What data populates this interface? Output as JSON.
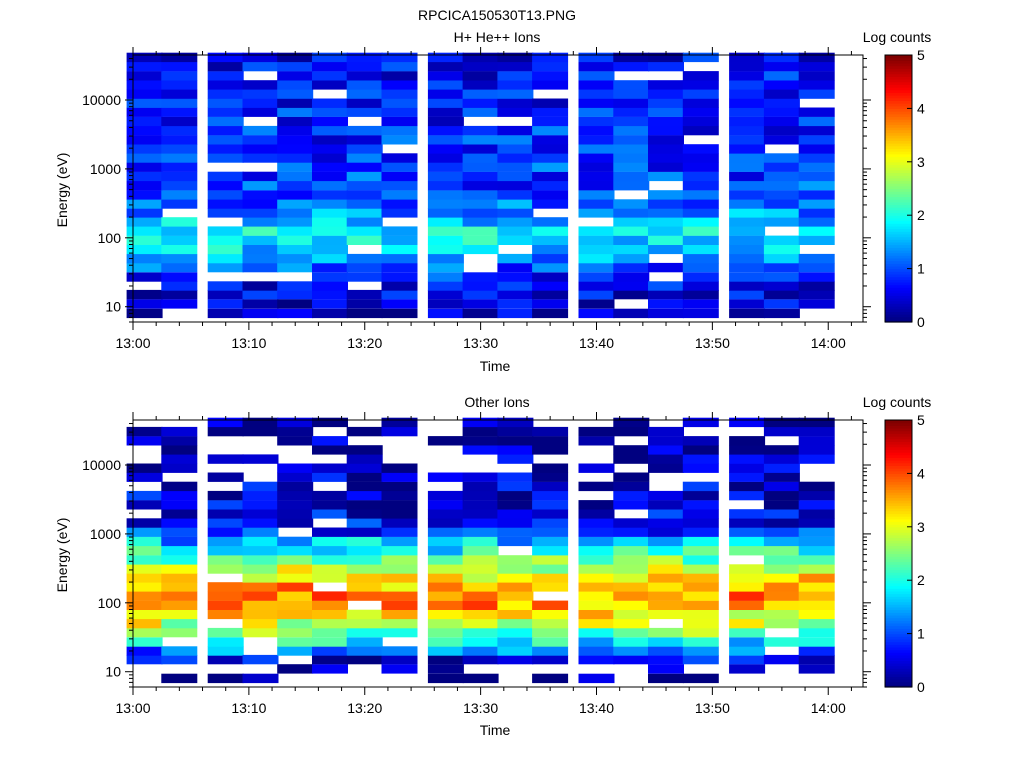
{
  "figure_title": "RPCICA150530T13.PNG",
  "chart_data": [
    {
      "type": "heatmap",
      "title": "H+ He++ Ions",
      "xlabel": "Time",
      "ylabel": "Energy (eV)",
      "x_ticks": [
        "13:00",
        "13:10",
        "13:20",
        "13:30",
        "13:40",
        "13:50",
        "14:00"
      ],
      "xlim": [
        "13:00",
        "14:03"
      ],
      "y_ticks": [
        "10",
        "100",
        "1000",
        "10000"
      ],
      "ylim": [
        6,
        45000
      ],
      "y_scale": "log",
      "colorbar": {
        "label": "Log counts",
        "ticks": [
          "0",
          "1",
          "2",
          "3",
          "4",
          "5"
        ],
        "range": [
          0,
          5
        ]
      },
      "time_columns": [
        "13:01",
        "13:04",
        "13:08",
        "13:11",
        "13:14",
        "13:17",
        "13:20",
        "13:23",
        "13:27",
        "13:30",
        "13:33",
        "13:36",
        "13:40",
        "13:43",
        "13:46",
        "13:49",
        "13:53",
        "13:56",
        "13:59"
      ],
      "energy_bins_eV": [
        8,
        11,
        15,
        20,
        27,
        37,
        50,
        68,
        92,
        125,
        170,
        230,
        310,
        420,
        570,
        780,
        1060,
        1440,
        1950,
        2650,
        3600,
        4900,
        6650,
        9000,
        12200,
        16600,
        22500,
        30600,
        41500
      ],
      "levels_by_energy_low_to_high": [
        0.3,
        0.4,
        0.5,
        0.6,
        0.8,
        1.0,
        1.3,
        1.7,
        1.8,
        1.8,
        1.6,
        1.3,
        1.1,
        1.0,
        0.95,
        0.9,
        0.9,
        0.85,
        0.8,
        0.8,
        0.8,
        0.75,
        0.75,
        0.7,
        0.7,
        0.7,
        0.65,
        0.65,
        0.6
      ]
    },
    {
      "type": "heatmap",
      "title": "Other Ions",
      "xlabel": "Time",
      "ylabel": "Energy (eV)",
      "x_ticks": [
        "13:00",
        "13:10",
        "13:20",
        "13:30",
        "13:40",
        "13:50",
        "14:00"
      ],
      "xlim": [
        "13:00",
        "14:03"
      ],
      "y_ticks": [
        "10",
        "100",
        "1000",
        "10000"
      ],
      "ylim": [
        6,
        45000
      ],
      "y_scale": "log",
      "colorbar": {
        "label": "Log counts",
        "ticks": [
          "0",
          "1",
          "2",
          "3",
          "4",
          "5"
        ],
        "range": [
          0,
          5
        ]
      },
      "time_columns": [
        "13:01",
        "13:04",
        "13:08",
        "13:11",
        "13:14",
        "13:17",
        "13:20",
        "13:23",
        "13:27",
        "13:30",
        "13:33",
        "13:36",
        "13:40",
        "13:43",
        "13:46",
        "13:49",
        "13:53",
        "13:56",
        "13:59"
      ],
      "energy_bins_eV": [
        8,
        11,
        15,
        20,
        27,
        37,
        50,
        68,
        92,
        125,
        170,
        230,
        310,
        420,
        570,
        780,
        1060,
        1440,
        1950,
        2650,
        3600,
        4900,
        6650,
        9000,
        12200,
        16600,
        22500,
        30600,
        41500
      ],
      "levels_by_energy_low_to_high": [
        0.05,
        0.15,
        0.45,
        1.2,
        1.9,
        2.4,
        2.9,
        3.2,
        3.6,
        3.7,
        3.5,
        3.2,
        2.8,
        2.5,
        2.0,
        1.5,
        0.9,
        0.6,
        0.5,
        0.45,
        0.4,
        0.35,
        0.3,
        0.3,
        0.25,
        0.2,
        0.15,
        0.1,
        0.05
      ]
    }
  ]
}
